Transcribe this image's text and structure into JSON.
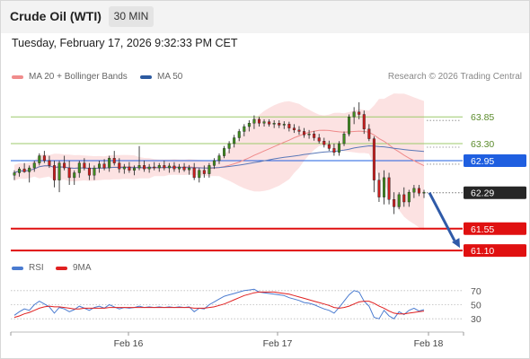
{
  "header": {
    "instrument": "Crude Oil (WTI)",
    "interval": "30 MIN"
  },
  "timestamp": "Tuesday, February 17, 2026 9:32:33 PM CET",
  "legend": {
    "ma20": {
      "label": "MA 20 + Bollinger Bands",
      "color": "#f08c8c"
    },
    "ma50": {
      "label": "MA 50",
      "color": "#2c5aa0"
    },
    "rsi": {
      "label": "RSI",
      "color": "#4a7bd0"
    },
    "rsi_ma": {
      "label": "9MA",
      "color": "#e02020"
    }
  },
  "credit": "Research © 2026 Trading Central",
  "chart_data": [
    {
      "type": "candlestick",
      "x_ticks": [
        "Feb 16",
        "Feb 17",
        "Feb 18"
      ],
      "ylim": [
        60.9,
        64.5
      ],
      "levels": [
        {
          "value": 63.85,
          "label": "63.85",
          "kind": "resistance",
          "color": "#9cc96b",
          "label_color": "#5a8a2a"
        },
        {
          "value": 63.3,
          "label": "63.30",
          "kind": "resistance",
          "color": "#9cc96b",
          "label_color": "#5a8a2a"
        },
        {
          "value": 62.95,
          "label": "62.95",
          "kind": "pivot",
          "color": "#1f5fe0",
          "label_bg": "#1f5fe0"
        },
        {
          "value": 62.29,
          "label": "62.29",
          "kind": "last-price",
          "color": "#555555",
          "label_bg": "#262626"
        },
        {
          "value": 61.55,
          "label": "61.55",
          "kind": "support",
          "color": "#e01010",
          "label_bg": "#e01010"
        },
        {
          "value": 61.1,
          "label": "61.10",
          "kind": "support",
          "color": "#e01010",
          "label_bg": "#e01010"
        }
      ],
      "forecast_arrow": {
        "from": 62.29,
        "to": 61.1,
        "color": "#2f5aa8"
      },
      "candles": [
        [
          62.65,
          62.75,
          62.55,
          62.7
        ],
        [
          62.7,
          62.82,
          62.62,
          62.78
        ],
        [
          62.78,
          62.9,
          62.7,
          62.72
        ],
        [
          62.72,
          62.85,
          62.5,
          62.8
        ],
        [
          62.8,
          62.95,
          62.72,
          62.9
        ],
        [
          62.9,
          63.1,
          62.85,
          63.05
        ],
        [
          63.05,
          63.15,
          62.9,
          62.95
        ],
        [
          62.95,
          63.05,
          62.8,
          62.85
        ],
        [
          62.85,
          62.95,
          62.4,
          62.55
        ],
        [
          62.55,
          62.95,
          62.3,
          62.9
        ],
        [
          62.9,
          63.05,
          62.75,
          62.8
        ],
        [
          62.8,
          62.95,
          62.45,
          62.6
        ],
        [
          62.6,
          62.75,
          62.45,
          62.7
        ],
        [
          62.7,
          62.95,
          62.6,
          62.9
        ],
        [
          62.9,
          63.0,
          62.75,
          62.8
        ],
        [
          62.8,
          62.9,
          62.55,
          62.65
        ],
        [
          62.65,
          62.85,
          62.55,
          62.8
        ],
        [
          62.8,
          62.95,
          62.7,
          62.88
        ],
        [
          62.88,
          62.98,
          62.75,
          62.8
        ],
        [
          62.8,
          63.05,
          62.72,
          63.0
        ],
        [
          63.0,
          63.15,
          62.85,
          62.9
        ],
        [
          62.9,
          63.0,
          62.7,
          62.78
        ],
        [
          62.78,
          62.88,
          62.68,
          62.82
        ],
        [
          62.82,
          62.92,
          62.7,
          62.75
        ],
        [
          62.75,
          62.85,
          62.65,
          62.8
        ],
        [
          62.8,
          63.25,
          62.75,
          62.85
        ],
        [
          62.85,
          62.95,
          62.72,
          62.78
        ],
        [
          62.78,
          62.88,
          62.7,
          62.82
        ],
        [
          62.82,
          62.92,
          62.75,
          62.8
        ],
        [
          62.8,
          62.9,
          62.72,
          62.85
        ],
        [
          62.85,
          62.95,
          62.75,
          62.8
        ],
        [
          62.8,
          62.9,
          62.7,
          62.84
        ],
        [
          62.84,
          62.92,
          62.72,
          62.78
        ],
        [
          62.78,
          62.88,
          62.7,
          62.82
        ],
        [
          62.82,
          62.9,
          62.72,
          62.76
        ],
        [
          62.76,
          62.86,
          62.66,
          62.8
        ],
        [
          62.8,
          62.9,
          62.55,
          62.6
        ],
        [
          62.6,
          62.8,
          62.5,
          62.75
        ],
        [
          62.75,
          62.85,
          62.6,
          62.68
        ],
        [
          62.68,
          62.9,
          62.6,
          62.85
        ],
        [
          62.85,
          63.0,
          62.78,
          62.95
        ],
        [
          62.95,
          63.1,
          62.88,
          63.05
        ],
        [
          63.05,
          63.25,
          63.0,
          63.2
        ],
        [
          63.2,
          63.35,
          63.1,
          63.3
        ],
        [
          63.3,
          63.48,
          63.22,
          63.42
        ],
        [
          63.42,
          63.6,
          63.35,
          63.55
        ],
        [
          63.55,
          63.7,
          63.45,
          63.65
        ],
        [
          63.65,
          63.78,
          63.55,
          63.72
        ],
        [
          63.72,
          63.88,
          63.6,
          63.8
        ],
        [
          63.8,
          63.85,
          63.65,
          63.72
        ],
        [
          63.72,
          63.8,
          63.65,
          63.75
        ],
        [
          63.75,
          63.8,
          63.65,
          63.7
        ],
        [
          63.7,
          63.78,
          63.62,
          63.72
        ],
        [
          63.72,
          63.78,
          63.62,
          63.68
        ],
        [
          63.68,
          63.76,
          63.6,
          63.7
        ],
        [
          63.7,
          63.75,
          63.55,
          63.62
        ],
        [
          63.62,
          63.7,
          63.52,
          63.58
        ],
        [
          63.58,
          63.66,
          63.48,
          63.55
        ],
        [
          63.55,
          63.62,
          63.42,
          63.48
        ],
        [
          63.48,
          63.58,
          63.4,
          63.5
        ],
        [
          63.5,
          63.56,
          63.36,
          63.42
        ],
        [
          63.42,
          63.5,
          63.3,
          63.35
        ],
        [
          63.35,
          63.42,
          63.22,
          63.28
        ],
        [
          63.28,
          63.36,
          63.15,
          63.2
        ],
        [
          63.2,
          63.3,
          63.05,
          63.12
        ],
        [
          63.12,
          63.35,
          63.05,
          63.3
        ],
        [
          63.3,
          63.55,
          63.25,
          63.5
        ],
        [
          63.5,
          63.9,
          63.45,
          63.85
        ],
        [
          63.85,
          64.05,
          63.7,
          63.95
        ],
        [
          63.95,
          64.15,
          63.8,
          63.9
        ],
        [
          63.9,
          63.98,
          63.5,
          63.6
        ],
        [
          63.6,
          63.7,
          63.35,
          63.4
        ],
        [
          63.4,
          63.45,
          62.3,
          62.55
        ],
        [
          62.55,
          62.7,
          62.1,
          62.2
        ],
        [
          62.2,
          62.75,
          62.05,
          62.6
        ],
        [
          62.6,
          62.7,
          62.05,
          62.15
        ],
        [
          62.15,
          62.3,
          61.85,
          62.0
        ],
        [
          62.0,
          62.3,
          61.95,
          62.25
        ],
        [
          62.25,
          62.4,
          62.0,
          62.1
        ],
        [
          62.1,
          62.35,
          62.0,
          62.3
        ],
        [
          62.3,
          62.45,
          62.18,
          62.38
        ],
        [
          62.38,
          62.45,
          62.22,
          62.28
        ],
        [
          62.28,
          62.35,
          62.18,
          62.3
        ]
      ]
    },
    {
      "type": "line",
      "name": "RSI panel",
      "ylim": [
        20,
        80
      ],
      "y_ticks": [
        70,
        50,
        30
      ],
      "series": [
        {
          "name": "RSI",
          "values": [
            35,
            40,
            44,
            42,
            50,
            55,
            51,
            47,
            38,
            46,
            44,
            40,
            43,
            48,
            45,
            42,
            46,
            48,
            45,
            50,
            47,
            44,
            46,
            45,
            46,
            48,
            46,
            47,
            46,
            47,
            46,
            47,
            46,
            47,
            46,
            47,
            40,
            45,
            44,
            50,
            54,
            58,
            62,
            64,
            66,
            68,
            70,
            71,
            72,
            68,
            67,
            66,
            65,
            64,
            63,
            60,
            58,
            56,
            53,
            52,
            50,
            47,
            44,
            42,
            38,
            46,
            55,
            64,
            70,
            68,
            55,
            48,
            32,
            30,
            42,
            34,
            30,
            40,
            36,
            42,
            45,
            41,
            43
          ]
        },
        {
          "name": "9MA",
          "values": [
            32,
            34,
            37,
            39,
            42,
            45,
            47,
            48,
            47,
            47,
            46,
            45,
            44,
            44,
            45,
            45,
            45,
            45,
            45,
            46,
            46,
            46,
            46,
            46,
            46,
            46,
            46,
            46,
            46,
            46,
            46,
            46,
            46,
            46,
            46,
            46,
            45,
            45,
            45,
            46,
            47,
            49,
            51,
            54,
            57,
            60,
            63,
            65,
            67,
            68,
            68,
            68,
            68,
            67,
            66,
            65,
            63,
            61,
            59,
            57,
            55,
            53,
            51,
            49,
            46,
            45,
            46,
            48,
            51,
            54,
            55,
            55,
            52,
            48,
            45,
            41,
            38,
            37,
            37,
            38,
            39,
            40,
            41
          ]
        }
      ]
    }
  ]
}
